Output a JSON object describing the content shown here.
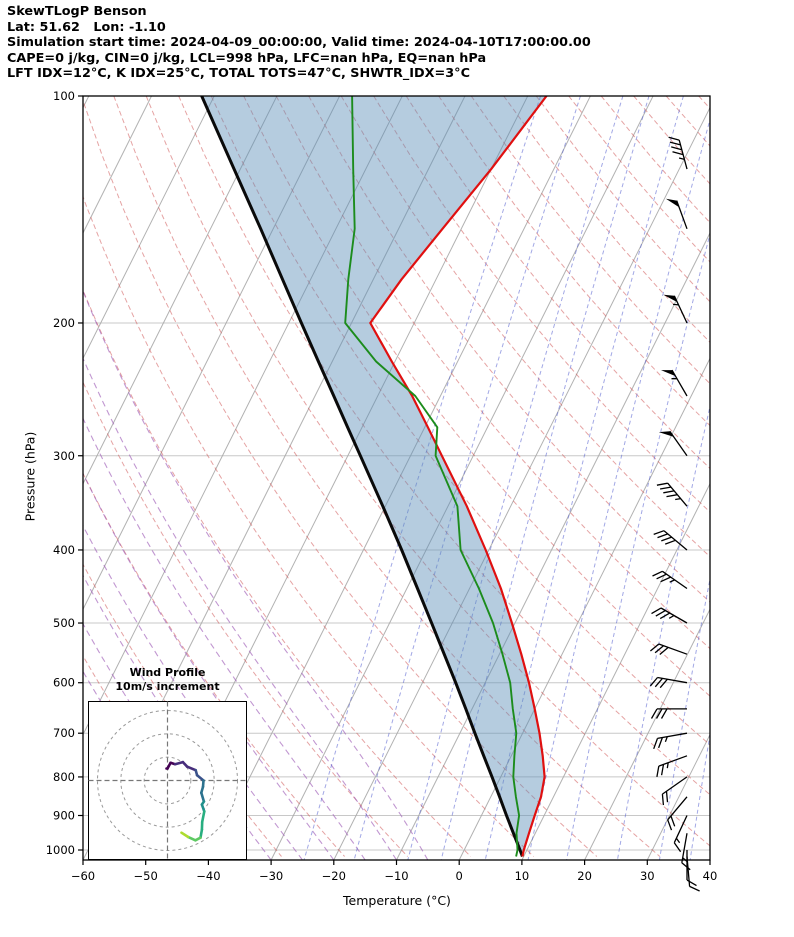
{
  "header": {
    "lines": [
      "SkewTLogP Benson",
      "Lat: 51.62   Lon: -1.10",
      "Simulation start time: 2024-04-09_00:00:00, Valid time: 2024-04-10T17:00:00.00",
      "CAPE=0 j/kg, CIN=0 j/kg, LCL=998 hPa, LFC=nan hPa, EQ=nan hPa",
      "LFT IDX=12°C, K IDX=25°C, TOTAL TOTS=47°C, SHWTR_IDX=3°C"
    ]
  },
  "chart_data": {
    "type": "skewt-logp",
    "x_axis": {
      "label": "Temperature (°C)",
      "ticks": [
        -60,
        -50,
        -40,
        -30,
        -20,
        -10,
        0,
        10,
        20,
        30,
        40
      ],
      "min": -60,
      "max": 40,
      "skew_dx_per_dy": 0.5
    },
    "y_axis": {
      "label": "Pressure (hPa)",
      "ticks": [
        100,
        200,
        300,
        400,
        500,
        600,
        700,
        800,
        900,
        1000
      ],
      "top_hpa": 100,
      "bottom_hpa": 1031,
      "scale": "log"
    },
    "sounding": {
      "pressure_hpa": [
        1020,
        1000,
        950,
        900,
        850,
        800,
        750,
        700,
        650,
        600,
        550,
        500,
        450,
        400,
        350,
        300,
        275,
        250,
        225,
        200,
        175,
        150,
        125,
        100
      ],
      "temperature_c": [
        9.8,
        9.5,
        9.0,
        8.5,
        8.0,
        7.0,
        5.0,
        2.7,
        0.0,
        -3.0,
        -6.5,
        -10.5,
        -15.0,
        -20.5,
        -27.0,
        -35.0,
        -39.5,
        -44.5,
        -50.5,
        -57.0,
        -55.5,
        -53.0,
        -50.0,
        -47.0
      ],
      "dewpoint_c": [
        8.8,
        8.5,
        7.0,
        6.0,
        4.0,
        2.0,
        0.5,
        -1.0,
        -3.5,
        -6.0,
        -9.5,
        -13.5,
        -18.5,
        -24.5,
        -28.5,
        -36.0,
        -38.0,
        -44.0,
        -53.0,
        -61.0,
        -64.0,
        -67.0,
        -72.0,
        -78.0
      ],
      "parcel_temp_c": [
        9.8,
        8.9,
        6.5,
        4.0,
        1.4,
        -1.4,
        -4.4,
        -7.6,
        -11.0,
        -14.7,
        -18.8,
        -23.3,
        -28.3,
        -33.9,
        -40.4,
        -48.0,
        -52.3,
        -57.0,
        -62.2,
        -68.0,
        -74.5,
        -82.0,
        -91.0,
        -102.0
      ]
    },
    "gridlines": {
      "isotherm_min": -120,
      "isotherm_max": 40,
      "isotherm_step": 10,
      "dry_adiabat_theta_min": -40,
      "dry_adiabat_theta_max": 220,
      "dry_adiabat_theta_step": 10,
      "moist_adiabat_starts_c": [
        -40,
        -35,
        -30,
        -25,
        -20,
        -15,
        -10,
        -5
      ],
      "mixing_ratio_g_kg": [
        0.5,
        1,
        2,
        3,
        5,
        8,
        12,
        20,
        30,
        40
      ]
    },
    "wind_barbs": {
      "units": "kt",
      "pressure_hpa": [
        1020,
        1000,
        950,
        900,
        850,
        800,
        750,
        700,
        650,
        600,
        550,
        500,
        450,
        400,
        350,
        300,
        250,
        200,
        150,
        125
      ],
      "direction_deg": [
        175,
        180,
        190,
        205,
        220,
        235,
        250,
        260,
        270,
        280,
        290,
        300,
        305,
        310,
        320,
        325,
        330,
        335,
        340,
        345
      ],
      "speed_kt": [
        10,
        10,
        15,
        15,
        20,
        20,
        25,
        25,
        30,
        30,
        30,
        35,
        35,
        40,
        45,
        50,
        55,
        55,
        50,
        45
      ]
    },
    "hodograph": {
      "title_lines": [
        "Wind Profile",
        "10m/s increment"
      ],
      "ring_interval_ms": 10,
      "rings_ms": [
        10,
        20,
        30
      ],
      "trace_colors": [
        "#440154",
        "#472d7b",
        "#3b528b",
        "#2c728e",
        "#21918c",
        "#28ae80",
        "#5ec962",
        "#addc30"
      ]
    },
    "colors": {
      "temperature": "#e01010",
      "dewpoint": "#1c8c1c",
      "parcel": "#0a0a0a",
      "shade": "#5b8db8",
      "shade_opacity": 0.45,
      "isotherm": "#a8a8a8",
      "isobar": "#c8c8c8",
      "dry_adiabat": "#d05858",
      "moist_adiabat": "#a060b8",
      "mixing_ratio": "#5560d0",
      "barb": "#000000"
    }
  }
}
